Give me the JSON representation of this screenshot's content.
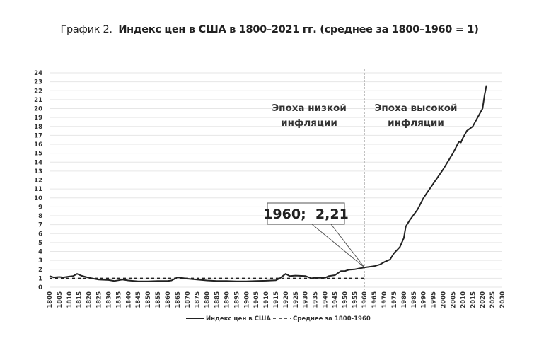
{
  "title": {
    "prefix": "График 2.",
    "main": "Индекс цен в США в 1800–2021 гг. (среднее за 1800–1960 = 1)"
  },
  "chart_data": {
    "type": "line",
    "title": "Индекс цен в США в 1800–2021 гг. (среднее за 1800–1960 = 1)",
    "xlabel": "",
    "ylabel": "",
    "xlim": [
      1800,
      2030
    ],
    "ylim": [
      0,
      24
    ],
    "x_ticks": [
      1800,
      1805,
      1810,
      1815,
      1820,
      1825,
      1830,
      1835,
      1840,
      1845,
      1850,
      1855,
      1860,
      1865,
      1870,
      1875,
      1880,
      1885,
      1890,
      1895,
      1900,
      1905,
      1910,
      1915,
      1920,
      1925,
      1930,
      1935,
      1940,
      1945,
      1950,
      1955,
      1960,
      1965,
      1970,
      1975,
      1980,
      1985,
      1990,
      1995,
      2000,
      2005,
      2010,
      2015,
      2020,
      2025,
      2030
    ],
    "y_ticks": [
      0,
      1,
      2,
      3,
      4,
      5,
      6,
      7,
      8,
      9,
      10,
      11,
      12,
      13,
      14,
      15,
      16,
      17,
      18,
      19,
      20,
      21,
      22,
      23,
      24
    ],
    "grid": true,
    "legend_position": "bottom",
    "series": [
      {
        "name": "Индекс цен в США",
        "style": "solid",
        "x": [
          1800,
          1802,
          1805,
          1807,
          1810,
          1812,
          1814,
          1816,
          1820,
          1825,
          1830,
          1833,
          1837,
          1840,
          1845,
          1850,
          1855,
          1860,
          1862,
          1865,
          1870,
          1875,
          1880,
          1885,
          1890,
          1895,
          1900,
          1905,
          1910,
          1915,
          1917,
          1920,
          1922,
          1925,
          1930,
          1933,
          1935,
          1940,
          1942,
          1945,
          1948,
          1950,
          1952,
          1955,
          1960,
          1965,
          1968,
          1970,
          1973,
          1975,
          1978,
          1980,
          1981,
          1983,
          1985,
          1987,
          1990,
          1995,
          2000,
          2005,
          2008,
          2009,
          2010,
          2012,
          2015,
          2018,
          2019,
          2020,
          2021,
          2022
        ],
        "values": [
          1.25,
          1.1,
          1.15,
          1.1,
          1.2,
          1.25,
          1.5,
          1.3,
          1.05,
          0.85,
          0.8,
          0.7,
          0.85,
          0.75,
          0.65,
          0.65,
          0.7,
          0.7,
          0.75,
          1.1,
          0.95,
          0.85,
          0.75,
          0.7,
          0.7,
          0.65,
          0.65,
          0.7,
          0.72,
          0.78,
          1.0,
          1.5,
          1.25,
          1.3,
          1.25,
          1.0,
          1.05,
          1.05,
          1.25,
          1.35,
          1.8,
          1.8,
          1.95,
          2.0,
          2.21,
          2.35,
          2.55,
          2.8,
          3.1,
          3.8,
          4.5,
          5.5,
          6.8,
          7.5,
          8.1,
          8.7,
          10.0,
          11.6,
          13.2,
          15.0,
          16.3,
          16.2,
          16.7,
          17.5,
          18.0,
          19.2,
          19.6,
          20.0,
          21.5,
          22.6
        ]
      },
      {
        "name": "Среднее за 1800-1960",
        "style": "dashed",
        "x": [
          1800,
          1960
        ],
        "values": [
          1,
          1
        ]
      }
    ],
    "annotations": {
      "callout": "1960;  2,21",
      "callout_point": [
        1960,
        2.21
      ],
      "divider_year": 1960,
      "era_low": [
        "Эпоха низкой",
        "инфляции"
      ],
      "era_high": [
        "Эпоха высокой",
        "инфляции"
      ]
    }
  },
  "colors": {
    "line": "#222222",
    "grid": "#e6e6e6",
    "divider": "#aaaaaa"
  }
}
